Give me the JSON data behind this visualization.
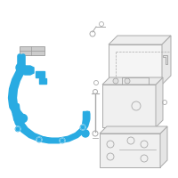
{
  "background_color": "#ffffff",
  "cable_color": "#29abe2",
  "parts_color": "#aaaaaa",
  "fig_width": 2.0,
  "fig_height": 2.0,
  "dpi": 100,
  "cable_lw": 3.0,
  "parts_lw": 0.7,
  "connector_gray": "#cccccc",
  "connector_edge": "#999999"
}
